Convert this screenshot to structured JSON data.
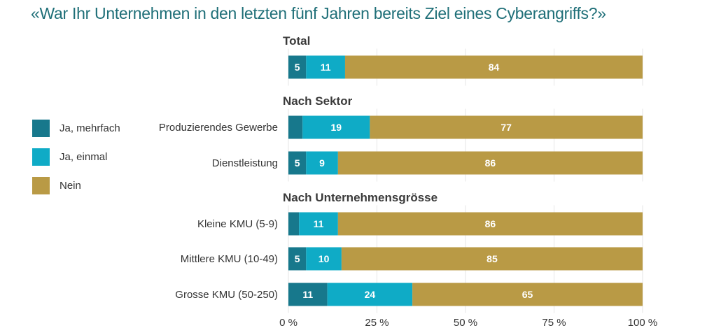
{
  "chart_data": {
    "type": "bar",
    "orientation": "horizontal",
    "stacked": true,
    "title": "«War Ihr Unternehmen in den letzten fünf Jahren bereits Ziel eines Cyberangriffs?»",
    "xlabel": "",
    "ylabel": "",
    "xlim": [
      0,
      100
    ],
    "x_ticks": [
      "0 %",
      "25 %",
      "50 %",
      "75 %",
      "100 %"
    ],
    "x_tick_values": [
      0,
      25,
      50,
      75,
      100
    ],
    "grid": true,
    "legend_position": "left",
    "series": [
      {
        "name": "Ja, mehrfach",
        "color": "#17788c"
      },
      {
        "name": "Ja, einmal",
        "color": "#0fabc6"
      },
      {
        "name": "Nein",
        "color": "#b99a45"
      }
    ],
    "groups": [
      {
        "title": "Total",
        "rows": [
          {
            "label": "",
            "values": [
              5,
              11,
              84
            ],
            "shown_labels": [
              "5",
              "11",
              "84"
            ]
          }
        ]
      },
      {
        "title": "Nach Sektor",
        "rows": [
          {
            "label": "Produzierendes Gewerbe",
            "values": [
              4,
              19,
              77
            ],
            "shown_labels": [
              "",
              "19",
              "77"
            ]
          },
          {
            "label": "Dienstleistung",
            "values": [
              5,
              9,
              86
            ],
            "shown_labels": [
              "5",
              "9",
              "86"
            ]
          }
        ]
      },
      {
        "title": "Nach Unternehmensgrösse",
        "rows": [
          {
            "label": "Kleine KMU (5-9)",
            "values": [
              3,
              11,
              86
            ],
            "shown_labels": [
              "",
              "11",
              "86"
            ]
          },
          {
            "label": "Mittlere KMU (10-49)",
            "values": [
              5,
              10,
              85
            ],
            "shown_labels": [
              "5",
              "10",
              "85"
            ]
          },
          {
            "label": "Grosse KMU (50-250)",
            "values": [
              11,
              24,
              65
            ],
            "shown_labels": [
              "11",
              "24",
              "65"
            ]
          }
        ]
      }
    ]
  }
}
